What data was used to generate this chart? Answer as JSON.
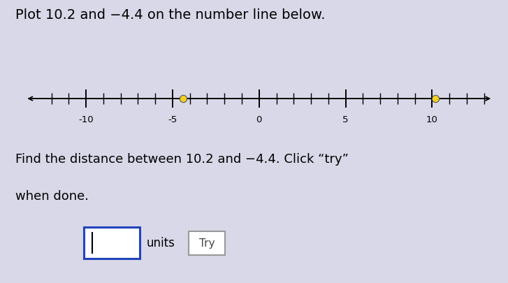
{
  "title": "Plot 10.2 and −4.4 on the number line below.",
  "number_line_min": -13.5,
  "number_line_max": 13.5,
  "tick_major": [
    -10,
    -5,
    0,
    5,
    10
  ],
  "tick_labels": [
    "-10",
    "-5",
    "0",
    "5",
    "10"
  ],
  "tick_minor_range": [
    -12,
    13
  ],
  "points": [
    -4.4,
    10.2
  ],
  "point_color": "#f0d020",
  "point_edgecolor": "#555555",
  "point_size": 55,
  "body_line1": "Find the distance between 10.2 and −4.4. Click “try”",
  "body_line2": "when done.",
  "background_color": "#d8d8e8",
  "title_fontsize": 14,
  "body_fontsize": 13
}
